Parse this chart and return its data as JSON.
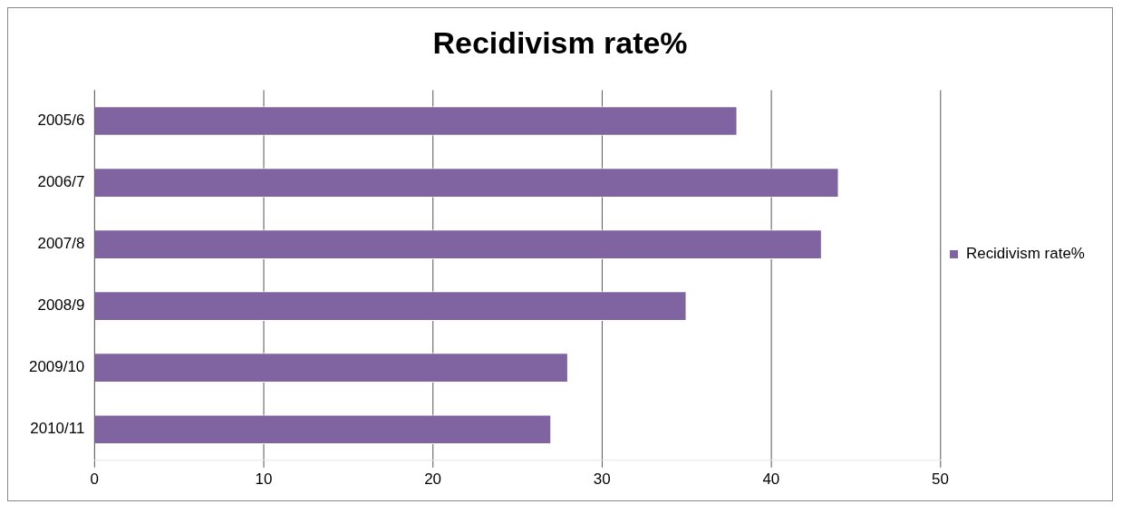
{
  "chart_data": {
    "type": "bar",
    "orientation": "horizontal",
    "title": "Recidivism rate%",
    "categories": [
      "2005/6",
      "2006/7",
      "2007/8",
      "2008/9",
      "2009/10",
      "2010/11"
    ],
    "series": [
      {
        "name": "Recidivism rate%",
        "color": "#8064a2",
        "values": [
          38,
          44,
          43,
          35,
          28,
          27
        ]
      }
    ],
    "xlim": [
      0,
      50
    ],
    "xticks": [
      0,
      10,
      20,
      30,
      40,
      50
    ],
    "grid": "x",
    "legend": "right"
  }
}
